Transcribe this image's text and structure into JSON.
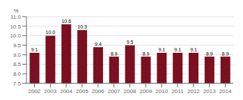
{
  "chart_data": {
    "type": "bar",
    "ylabel": "%",
    "categories": [
      "2002",
      "2003",
      "2004",
      "2005",
      "2006",
      "2007",
      "2008",
      "2009",
      "2010",
      "2011",
      "2012",
      "2013",
      "2014"
    ],
    "values": [
      9.1,
      10.0,
      10.6,
      10.3,
      9.4,
      8.9,
      9.5,
      8.9,
      9.1,
      9.1,
      9.1,
      8.9,
      8.9
    ],
    "value_labels": [
      "9.1",
      "10.0",
      "10.6",
      "10.3",
      "9.4",
      "8.9",
      "9.5",
      "8.9",
      "9.1",
      "9.1",
      "9.1",
      "8.9",
      "8.9"
    ],
    "data_labels": true,
    "color": "#7B1020",
    "ylim": [
      7.5,
      11.0
    ],
    "yticks": [
      7.5,
      {
        "value": 8.0,
        "label": "8.0"
      },
      8.5,
      {
        "value": 9.0,
        "label": "9.0"
      },
      9.5,
      {
        "value": 10.0,
        "label": "10.0"
      },
      10.5,
      {
        "value": 11.0,
        "label": "11.0"
      }
    ],
    "grid": true
  }
}
